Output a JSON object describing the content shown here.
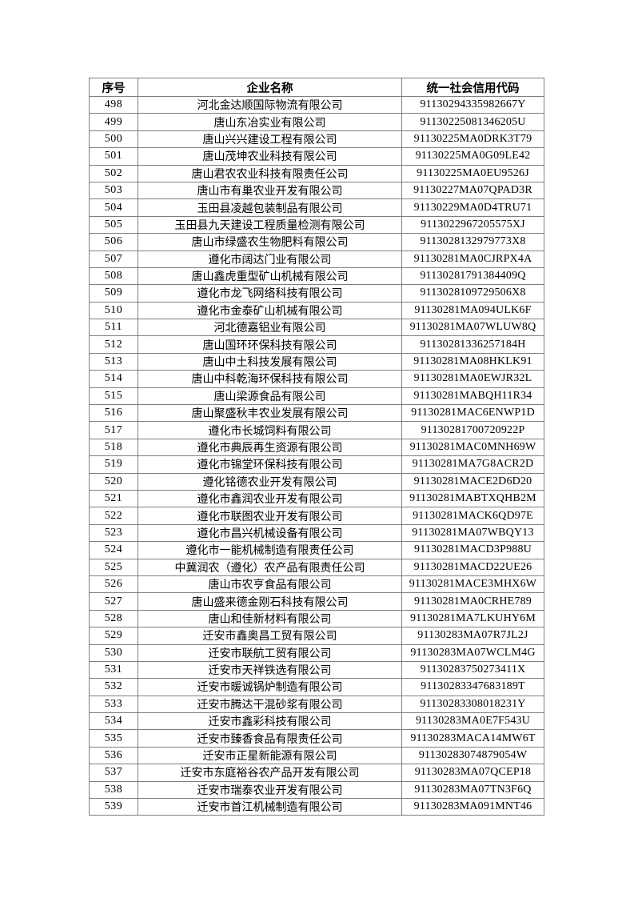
{
  "table": {
    "headers": [
      "序号",
      "企业名称",
      "统一社会信用代码"
    ],
    "border_color": "#7f7f7f",
    "text_color": "#000000",
    "rows": [
      {
        "no": "498",
        "name": "河北金达顺国际物流有限公司",
        "code": "91130294335982667Y"
      },
      {
        "no": "499",
        "name": "唐山东冶实业有限公司",
        "code": "91130225081346205U"
      },
      {
        "no": "500",
        "name": "唐山兴兴建设工程有限公司",
        "code": "91130225MA0DRK3T79"
      },
      {
        "no": "501",
        "name": "唐山茂坤农业科技有限公司",
        "code": "91130225MA0G09LE42"
      },
      {
        "no": "502",
        "name": "唐山君农农业科技有限责任公司",
        "code": "91130225MA0EU9526J"
      },
      {
        "no": "503",
        "name": "唐山市有巢农业开发有限公司",
        "code": "91130227MA07QPAD3R"
      },
      {
        "no": "504",
        "name": "玉田县凌越包装制品有限公司",
        "code": "91130229MA0D4TRU71"
      },
      {
        "no": "505",
        "name": "玉田县九天建设工程质量检测有限公司",
        "code": "9113022967205575XJ"
      },
      {
        "no": "506",
        "name": "唐山市绿盛农生物肥料有限公司",
        "code": "9113028132979773X8"
      },
      {
        "no": "507",
        "name": "遵化市阔达门业有限公司",
        "code": "91130281MA0CJRPX4A"
      },
      {
        "no": "508",
        "name": "唐山鑫虎重型矿山机械有限公司",
        "code": "91130281791384409Q"
      },
      {
        "no": "509",
        "name": "遵化市龙飞网络科技有限公司",
        "code": "9113028109729506X8"
      },
      {
        "no": "510",
        "name": "遵化市金泰矿山机械有限公司",
        "code": "91130281MA094ULK6F"
      },
      {
        "no": "511",
        "name": "河北德嘉铝业有限公司",
        "code": "91130281MA07WLUW8Q"
      },
      {
        "no": "512",
        "name": "唐山国环环保科技有限公司",
        "code": "91130281336257184H"
      },
      {
        "no": "513",
        "name": "唐山中土科技发展有限公司",
        "code": "91130281MA08HKLK91"
      },
      {
        "no": "514",
        "name": "唐山中科乾海环保科技有限公司",
        "code": "91130281MA0EWJR32L"
      },
      {
        "no": "515",
        "name": "唐山梁源食品有限公司",
        "code": "91130281MABQH11R34"
      },
      {
        "no": "516",
        "name": "唐山聚盛秋丰农业发展有限公司",
        "code": "91130281MAC6ENWP1D"
      },
      {
        "no": "517",
        "name": "遵化市长城饲料有限公司",
        "code": "91130281700720922P"
      },
      {
        "no": "518",
        "name": "遵化市典辰再生资源有限公司",
        "code": "91130281MAC0MNH69W"
      },
      {
        "no": "519",
        "name": "遵化市锦堂环保科技有限公司",
        "code": "91130281MA7G8ACR2D"
      },
      {
        "no": "520",
        "name": "遵化铭德农业开发有限公司",
        "code": "91130281MACE2D6D20"
      },
      {
        "no": "521",
        "name": "遵化市鑫润农业开发有限公司",
        "code": "91130281MABTXQHB2M"
      },
      {
        "no": "522",
        "name": "遵化市联图农业开发有限公司",
        "code": "91130281MACK6QD97E"
      },
      {
        "no": "523",
        "name": "遵化市昌兴机械设备有限公司",
        "code": "91130281MA07WBQY13"
      },
      {
        "no": "524",
        "name": "遵化市一能机械制造有限责任公司",
        "code": "91130281MACD3P988U"
      },
      {
        "no": "525",
        "name": "中冀润农（遵化）农产品有限责任公司",
        "code": "91130281MACD22UE26"
      },
      {
        "no": "526",
        "name": "唐山市农亨食品有限公司",
        "code": "91130281MACE3MHX6W"
      },
      {
        "no": "527",
        "name": "唐山盛来德金刚石科技有限公司",
        "code": "91130281MA0CRHE789"
      },
      {
        "no": "528",
        "name": "唐山和佳新材料有限公司",
        "code": "91130281MA7LKUHY6M"
      },
      {
        "no": "529",
        "name": "迁安市鑫奥昌工贸有限公司",
        "code": "91130283MA07R7JL2J"
      },
      {
        "no": "530",
        "name": "迁安市联航工贸有限公司",
        "code": "91130283MA07WCLM4G"
      },
      {
        "no": "531",
        "name": "迁安市天祥铁选有限公司",
        "code": "91130283750273411X"
      },
      {
        "no": "532",
        "name": "迁安市暖诚锅炉制造有限公司",
        "code": "91130283347683189T"
      },
      {
        "no": "533",
        "name": "迁安市腾达干混砂浆有限公司",
        "code": "91130283308018231Y"
      },
      {
        "no": "534",
        "name": "迁安市鑫彩科技有限公司",
        "code": "91130283MA0E7F543U"
      },
      {
        "no": "535",
        "name": "迁安市臻香食品有限责任公司",
        "code": "91130283MACA14MW6T"
      },
      {
        "no": "536",
        "name": "迁安市正星新能源有限公司",
        "code": "91130283074879054W"
      },
      {
        "no": "537",
        "name": "迁安市东庭裕谷农产品开发有限公司",
        "code": "91130283MA07QCEP18"
      },
      {
        "no": "538",
        "name": "迁安市瑞泰农业开发有限公司",
        "code": "91130283MA07TN3F6Q"
      },
      {
        "no": "539",
        "name": "迁安市首江机械制造有限公司",
        "code": "91130283MA091MNT46"
      }
    ]
  }
}
